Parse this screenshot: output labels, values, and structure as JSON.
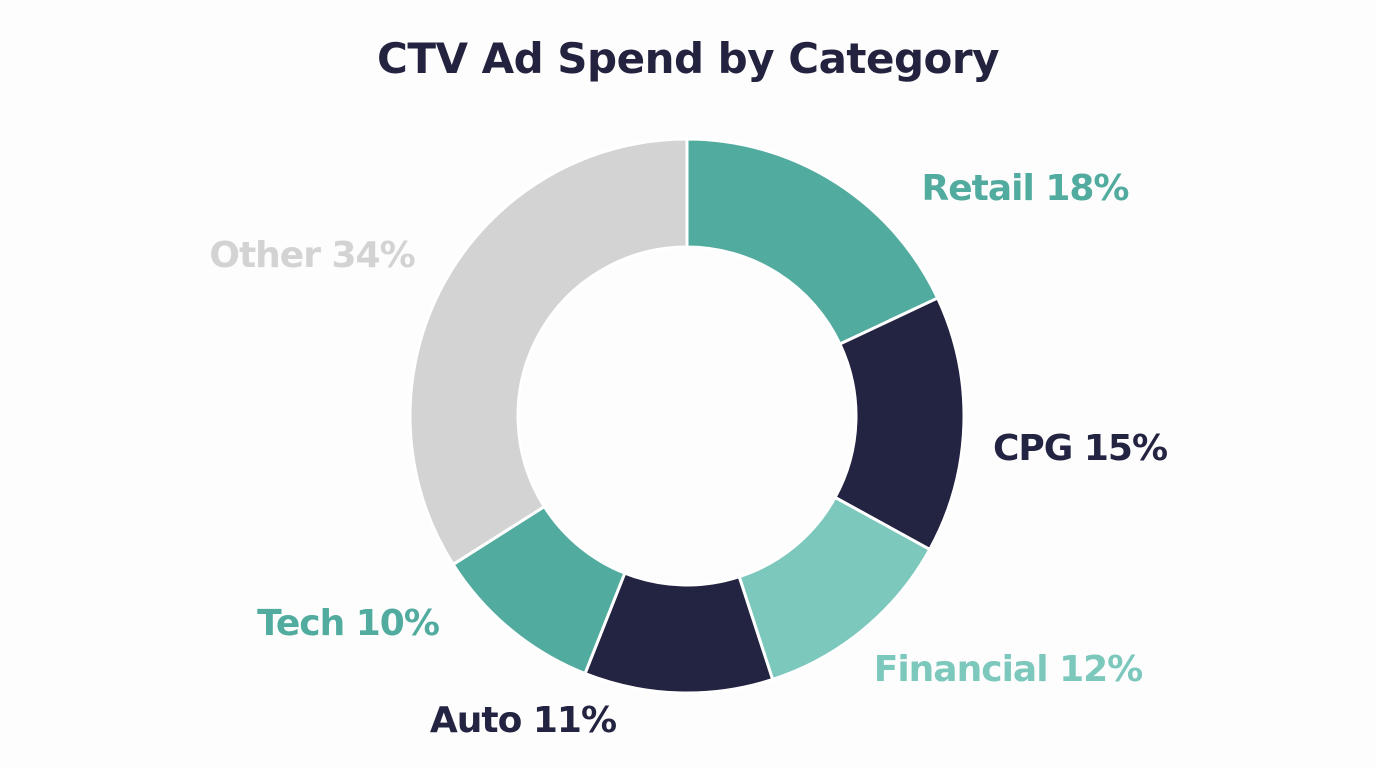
{
  "chart_data": {
    "type": "pie",
    "donut": true,
    "title": "CTV Ad Spend by Category",
    "start": "top, clockwise",
    "slices": [
      {
        "label": "Retail 18%",
        "name": "Retail",
        "value": 18,
        "color": "#52ab9f",
        "label_color": "#52ab9f"
      },
      {
        "label": "CPG 15%",
        "name": "CPG",
        "value": 15,
        "color": "#232342",
        "label_color": "#232342"
      },
      {
        "label": "Financial 12%",
        "name": "Financial",
        "value": 12,
        "color": "#7cc8bd",
        "label_color": "#7cc8bd"
      },
      {
        "label": "Auto 11%",
        "name": "Auto",
        "value": 11,
        "color": "#232342",
        "label_color": "#232342"
      },
      {
        "label": "Tech 10%",
        "name": "Tech",
        "value": 10,
        "color": "#52ab9f",
        "label_color": "#52ab9f"
      },
      {
        "label": "Other 34%",
        "name": "Other",
        "value": 34,
        "color": "#d3d3d3",
        "label_color": "#d3d3d3"
      }
    ],
    "legend": "none (direct labels)"
  }
}
